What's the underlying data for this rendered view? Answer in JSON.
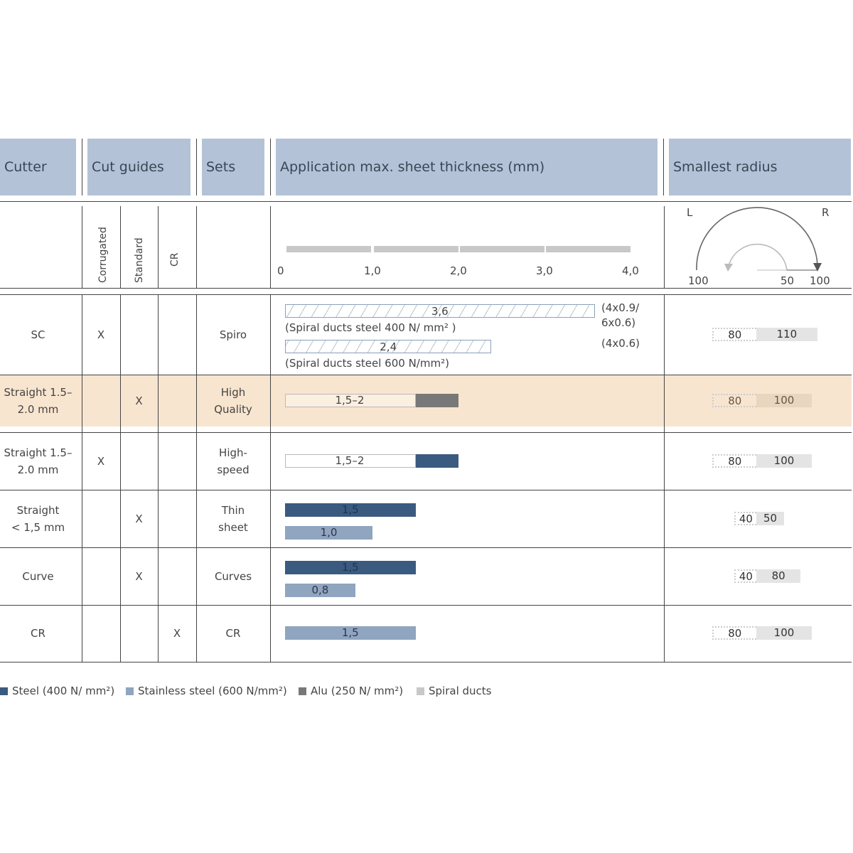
{
  "headers": {
    "cutter": "Cutter",
    "cut_guides": "Cut guides",
    "sets": "Sets",
    "application": "Application max. sheet thickness (mm)",
    "radius": "Smallest radius"
  },
  "subheaders": {
    "corrugated": "Corrugated",
    "standard": "Standard",
    "cr": "CR"
  },
  "axis": {
    "ticks": [
      "0",
      "1,0",
      "2,0",
      "3,0",
      "4,0"
    ],
    "range": [
      0,
      4
    ]
  },
  "radius_diagram": {
    "L": "L",
    "R": "R",
    "labels": [
      "100",
      "50",
      "100"
    ]
  },
  "colors": {
    "steel": "#3b5a80",
    "stainless": "#8fa5c0",
    "alu": "#787878",
    "spiral": "#c8c8c8",
    "header": "#b3c2d6",
    "highlight": "#f8e5cf"
  },
  "chart_data": {
    "type": "bar",
    "xlabel": "Application max. sheet thickness (mm)",
    "xlim": [
      0,
      4
    ],
    "rows": [
      {
        "cutter": "SC",
        "corrugated": "X",
        "standard": "",
        "cr": "",
        "set": "Spiro",
        "highlight": false,
        "bars": [
          {
            "type": "spiral",
            "value": 3.6,
            "label": "3,6",
            "caption": "(Spiral ducts steel 400 N/ mm² )",
            "note": "(4x0.9/ 6x0.6)"
          },
          {
            "type": "spiral",
            "value": 2.4,
            "label": "2,4",
            "caption": "(Spiral ducts steel 600 N/mm²)",
            "note": "(4x0.6)"
          }
        ],
        "radius": {
          "L": 80,
          "R": 110
        }
      },
      {
        "cutter": "Straight 1.5–2.0 mm",
        "corrugated": "",
        "standard": "X",
        "cr": "",
        "set": "High Quality",
        "highlight": true,
        "bars": [
          {
            "type": "alu",
            "from": 1.5,
            "value": 2,
            "label": "1,5–2"
          }
        ],
        "radius": {
          "L": 80,
          "R": 100
        }
      },
      {
        "cutter": "Straight 1.5–2.0 mm",
        "corrugated": "X",
        "standard": "",
        "cr": "",
        "set": "High- speed",
        "highlight": false,
        "bars": [
          {
            "type": "steel",
            "from": 1.5,
            "value": 2,
            "label": "1,5–2"
          }
        ],
        "radius": {
          "L": 80,
          "R": 100
        }
      },
      {
        "cutter": "Straight < 1,5 mm",
        "corrugated": "",
        "standard": "X",
        "cr": "",
        "set": "Thin sheet",
        "highlight": false,
        "bars": [
          {
            "type": "steel",
            "value": 1.5,
            "label": "1,5"
          },
          {
            "type": "stainless",
            "value": 1.0,
            "label": "1,0"
          }
        ],
        "radius": {
          "L": 40,
          "R": 50
        }
      },
      {
        "cutter": "Curve",
        "corrugated": "",
        "standard": "X",
        "cr": "",
        "set": "Curves",
        "highlight": false,
        "bars": [
          {
            "type": "steel",
            "value": 1.5,
            "label": "1,5"
          },
          {
            "type": "stainless",
            "value": 0.8,
            "label": "0,8"
          }
        ],
        "radius": {
          "L": 40,
          "R": 80
        }
      },
      {
        "cutter": "CR",
        "corrugated": "",
        "standard": "",
        "cr": "X",
        "set": "CR",
        "highlight": false,
        "bars": [
          {
            "type": "stainless",
            "value": 1.5,
            "label": "1,5"
          }
        ],
        "radius": {
          "L": 80,
          "R": 100
        }
      }
    ],
    "legend": [
      {
        "type": "steel",
        "label": "Steel (400 N/ mm²)"
      },
      {
        "type": "stainless",
        "label": "Stainless steel (600 N/mm²)"
      },
      {
        "type": "alu",
        "label": "Alu (250 N/ mm²)"
      },
      {
        "type": "spiral",
        "label": "Spiral ducts"
      }
    ]
  }
}
